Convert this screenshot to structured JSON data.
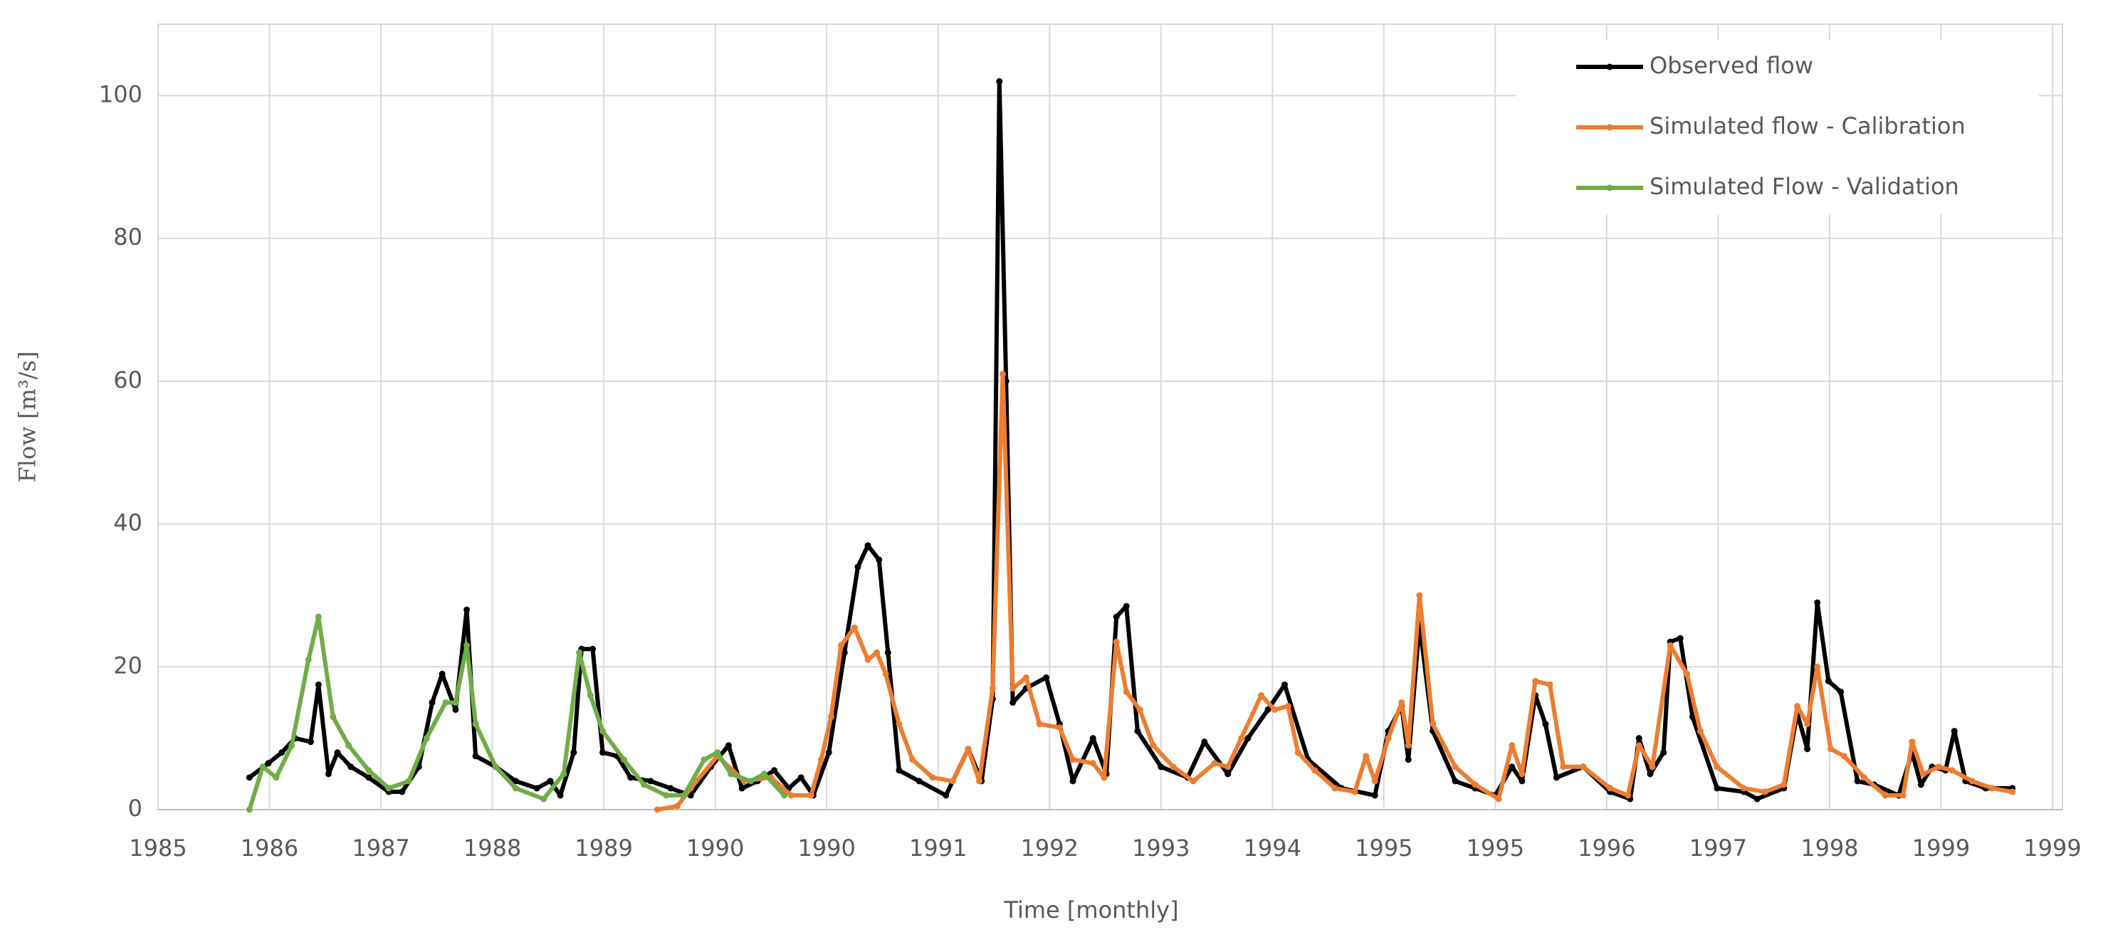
{
  "chart_data": {
    "type": "line",
    "x_label": "Time [monthly]",
    "y_label": "Flow [m³/s]",
    "xlim": [
      0,
      17
    ],
    "ylim": [
      0,
      110
    ],
    "xticks": [
      {
        "value": 0,
        "label": "1985"
      },
      {
        "value": 1,
        "label": "1986"
      },
      {
        "value": 2,
        "label": "1987"
      },
      {
        "value": 3,
        "label": "1988"
      },
      {
        "value": 4,
        "label": "1989"
      },
      {
        "value": 5,
        "label": "1990"
      },
      {
        "value": 6,
        "label": "1990"
      },
      {
        "value": 7,
        "label": "1991"
      },
      {
        "value": 8,
        "label": "1992"
      },
      {
        "value": 9,
        "label": "1993"
      },
      {
        "value": 10,
        "label": "1994"
      },
      {
        "value": 11,
        "label": "1995"
      },
      {
        "value": 12,
        "label": "1995"
      },
      {
        "value": 13,
        "label": "1996"
      },
      {
        "value": 14,
        "label": "1997"
      },
      {
        "value": 15,
        "label": "1998"
      },
      {
        "value": 16,
        "label": "1999"
      },
      {
        "value": 17,
        "label": "1999"
      }
    ],
    "yticks": [
      0,
      20,
      40,
      60,
      80,
      100
    ],
    "grid": true,
    "legend": "top-right",
    "series": [
      {
        "name": "Observed flow",
        "color": "#000000",
        "x": [
          0.82,
          0.99,
          1.11,
          1.23,
          1.37,
          1.44,
          1.53,
          1.61,
          1.73,
          1.89,
          2.07,
          2.19,
          2.34,
          2.46,
          2.55,
          2.67,
          2.77,
          2.85,
          3.03,
          3.21,
          3.4,
          3.52,
          3.61,
          3.73,
          3.8,
          3.9,
          3.99,
          4.12,
          4.24,
          4.42,
          4.6,
          4.78,
          4.96,
          5.12,
          5.24,
          5.38,
          5.53,
          5.66,
          5.77,
          5.88,
          6.02,
          6.16,
          6.28,
          6.37,
          6.47,
          6.55,
          6.65,
          6.83,
          7.07,
          7.27,
          7.39,
          7.49,
          7.55,
          7.61,
          7.67,
          7.79,
          7.97,
          8.09,
          8.21,
          8.39,
          8.51,
          8.6,
          8.69,
          8.79,
          9.0,
          9.24,
          9.39,
          9.6,
          9.78,
          9.96,
          10.11,
          10.32,
          10.62,
          10.92,
          11.04,
          11.16,
          11.22,
          11.32,
          11.44,
          11.64,
          11.82,
          12.0,
          12.15,
          12.24,
          12.36,
          12.45,
          12.55,
          12.79,
          13.03,
          13.21,
          13.29,
          13.39,
          13.51,
          13.57,
          13.66,
          13.77,
          13.99,
          14.23,
          14.35,
          14.59,
          14.71,
          14.8,
          14.89,
          14.99,
          15.1,
          15.25,
          15.4,
          15.62,
          15.74,
          15.82,
          15.92,
          16.04,
          16.12,
          16.22,
          16.4,
          16.64
        ],
        "values": [
          4.5,
          6.5,
          8,
          10,
          9.5,
          17.5,
          5,
          8,
          6,
          4.5,
          2.5,
          2.5,
          6,
          15,
          19,
          14,
          28,
          7.5,
          6,
          4,
          3,
          4,
          2,
          8,
          22.5,
          22.5,
          8,
          7.5,
          4.5,
          4,
          3,
          2,
          6,
          9,
          3,
          4,
          5.5,
          3,
          4.5,
          2,
          8,
          22,
          34,
          37,
          35,
          22,
          5.5,
          4,
          2,
          8.5,
          4,
          15.5,
          102,
          60,
          15,
          17,
          18.5,
          12,
          4,
          10,
          5,
          27,
          28.5,
          11,
          6,
          4.5,
          9.5,
          5,
          10,
          14,
          17.5,
          7,
          3,
          2,
          11,
          14.5,
          7,
          26,
          11,
          4,
          3,
          2,
          6,
          4,
          16,
          12,
          4.5,
          6,
          2.5,
          1.5,
          10,
          5,
          8,
          23.5,
          24,
          13,
          3,
          2.5,
          1.5,
          3,
          13.5,
          8.5,
          29,
          18,
          16.5,
          4,
          3.5,
          2,
          8,
          3.5,
          6,
          5.5,
          11,
          4,
          3,
          3
        ]
      },
      {
        "name": "Simulated flow - Calibration",
        "color": "#ed7d31",
        "x": [
          4.48,
          4.66,
          4.78,
          5.02,
          5.26,
          5.5,
          5.68,
          5.86,
          5.95,
          6.04,
          6.13,
          6.25,
          6.37,
          6.45,
          6.53,
          6.65,
          6.77,
          6.95,
          7.13,
          7.27,
          7.37,
          7.49,
          7.58,
          7.67,
          7.79,
          7.91,
          8.09,
          8.21,
          8.39,
          8.49,
          8.6,
          8.69,
          8.81,
          8.93,
          9.11,
          9.29,
          9.48,
          9.6,
          9.72,
          9.9,
          10.02,
          10.14,
          10.23,
          10.38,
          10.56,
          10.74,
          10.84,
          10.92,
          11.04,
          11.16,
          11.22,
          11.32,
          11.44,
          11.64,
          11.82,
          12.03,
          12.15,
          12.24,
          12.36,
          12.49,
          12.61,
          12.79,
          13.03,
          13.19,
          13.29,
          13.41,
          13.57,
          13.72,
          13.84,
          13.99,
          14.23,
          14.42,
          14.59,
          14.71,
          14.8,
          14.89,
          15.01,
          15.13,
          15.31,
          15.5,
          15.66,
          15.74,
          15.84,
          15.98,
          16.1,
          16.28,
          16.46,
          16.64
        ],
        "values": [
          0,
          0.5,
          3,
          7.5,
          4,
          4.5,
          2,
          2,
          7,
          13,
          23,
          25.5,
          21,
          22,
          19,
          12,
          7,
          4.5,
          4,
          8.5,
          4,
          17,
          61,
          17,
          18.5,
          12,
          11.5,
          7,
          6.5,
          4.5,
          23.5,
          16.5,
          14,
          9,
          6,
          4,
          6.5,
          6,
          10,
          16,
          14,
          14.5,
          8,
          5.5,
          3,
          2.5,
          7.5,
          4,
          10,
          15,
          9,
          30,
          12,
          6,
          3.5,
          1.5,
          9,
          5,
          18,
          17.5,
          6,
          6,
          3,
          2,
          9,
          6,
          23,
          19,
          11,
          6,
          3,
          2.5,
          3.5,
          14.5,
          12,
          20,
          8.5,
          7.5,
          4.5,
          2,
          2,
          9.5,
          5,
          6,
          5.5,
          4,
          3,
          2.5
        ]
      },
      {
        "name": "Simulated Flow - Validation",
        "color": "#70ad47",
        "x": [
          0.82,
          0.94,
          1.06,
          1.2,
          1.35,
          1.44,
          1.57,
          1.71,
          1.89,
          2.07,
          2.25,
          2.41,
          2.58,
          2.67,
          2.77,
          2.85,
          3.03,
          3.21,
          3.46,
          3.64,
          3.78,
          3.88,
          3.99,
          4.18,
          4.36,
          4.56,
          4.72,
          4.9,
          5.02,
          5.14,
          5.32,
          5.44,
          5.62
        ],
        "values": [
          0,
          6,
          4.5,
          9,
          21,
          27,
          13,
          9,
          5.5,
          3,
          4,
          10,
          15,
          15,
          23,
          12,
          6,
          3,
          1.5,
          5,
          22,
          16,
          11,
          7,
          3.5,
          2,
          2,
          7,
          8,
          5,
          4,
          5,
          2
        ]
      }
    ]
  }
}
